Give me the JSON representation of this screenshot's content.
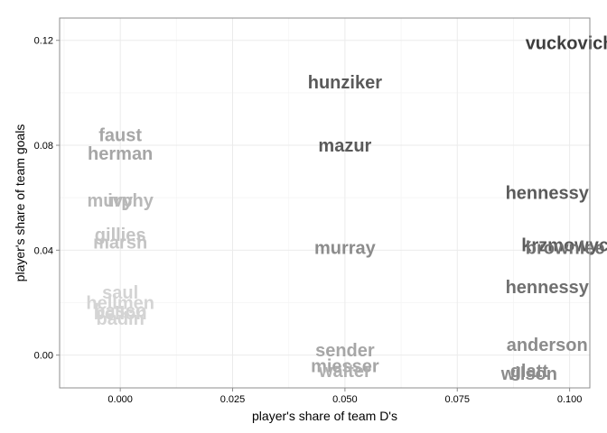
{
  "chart_data": {
    "type": "scatter",
    "title": "",
    "xlabel": "player's share of team D's",
    "ylabel": "player's share of team goals",
    "xlim": [
      -0.0135,
      0.1045
    ],
    "ylim": [
      -0.0125,
      0.1285
    ],
    "x_ticks": [
      {
        "value": 0.0,
        "label": "0.000"
      },
      {
        "value": 0.025,
        "label": "0.025"
      },
      {
        "value": 0.05,
        "label": "0.050"
      },
      {
        "value": 0.075,
        "label": "0.075"
      },
      {
        "value": 0.1,
        "label": "0.100"
      }
    ],
    "y_ticks": [
      {
        "value": 0.0,
        "label": "0.00"
      },
      {
        "value": 0.04,
        "label": "0.04"
      },
      {
        "value": 0.08,
        "label": "0.08"
      },
      {
        "value": 0.12,
        "label": "0.12"
      }
    ],
    "grid": true,
    "marker": "text labels",
    "points": [
      {
        "label": "vuckovich",
        "x": 0.1,
        "y": 0.119,
        "color": "#3d3d3d"
      },
      {
        "label": "hunziker",
        "x": 0.05,
        "y": 0.104,
        "color": "#5a5a5a"
      },
      {
        "label": "mazur",
        "x": 0.05,
        "y": 0.08,
        "color": "#5a5a5a"
      },
      {
        "label": "faust",
        "x": 0.0,
        "y": 0.084,
        "color": "#a6a6a6"
      },
      {
        "label": "herman",
        "x": 0.0,
        "y": 0.077,
        "color": "#a6a6a6"
      },
      {
        "label": "hennessy",
        "x": 0.095,
        "y": 0.062,
        "color": "#5a5a5a"
      },
      {
        "label": "murphy",
        "x": 0.0,
        "y": 0.059,
        "color": "#b8b8b8"
      },
      {
        "label": "ivy",
        "x": 0.0,
        "y": 0.059,
        "color": "#b8b8b8"
      },
      {
        "label": "gillies",
        "x": 0.0,
        "y": 0.046,
        "color": "#c4c4c4"
      },
      {
        "label": "marsh",
        "x": 0.0,
        "y": 0.043,
        "color": "#c4c4c4"
      },
      {
        "label": "murray",
        "x": 0.05,
        "y": 0.041,
        "color": "#8c8c8c"
      },
      {
        "label": "krzmowycz",
        "x": 0.1,
        "y": 0.042,
        "color": "#5a5a5a"
      },
      {
        "label": "brownlee",
        "x": 0.099,
        "y": 0.041,
        "color": "#707070"
      },
      {
        "label": "hennessy",
        "x": 0.095,
        "y": 0.026,
        "color": "#707070"
      },
      {
        "label": "saul",
        "x": 0.0,
        "y": 0.024,
        "color": "#d4d4d4"
      },
      {
        "label": "hellmen",
        "x": 0.0,
        "y": 0.02,
        "color": "#d4d4d4"
      },
      {
        "label": "basco",
        "x": 0.0,
        "y": 0.017,
        "color": "#d4d4d4"
      },
      {
        "label": "bellon",
        "x": 0.0,
        "y": 0.016,
        "color": "#d4d4d4"
      },
      {
        "label": "badin",
        "x": 0.0,
        "y": 0.014,
        "color": "#d4d4d4"
      },
      {
        "label": "anderson",
        "x": 0.095,
        "y": 0.004,
        "color": "#8c8c8c"
      },
      {
        "label": "sender",
        "x": 0.05,
        "y": 0.002,
        "color": "#a6a6a6"
      },
      {
        "label": "miesser",
        "x": 0.05,
        "y": -0.004,
        "color": "#a6a6a6"
      },
      {
        "label": "walter",
        "x": 0.05,
        "y": -0.006,
        "color": "#b0b0b0"
      },
      {
        "label": "glatt",
        "x": 0.091,
        "y": -0.006,
        "color": "#8c8c8c"
      },
      {
        "label": "wilson",
        "x": 0.091,
        "y": -0.007,
        "color": "#8c8c8c"
      }
    ]
  }
}
